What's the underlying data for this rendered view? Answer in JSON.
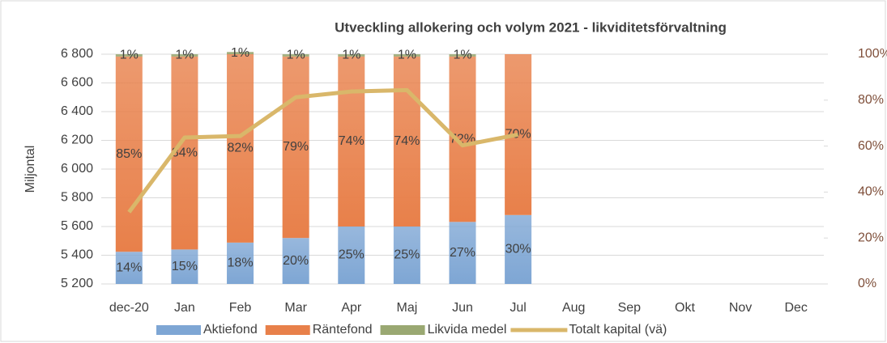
{
  "chart_data": {
    "type": "bar",
    "title": "Utveckling allokering och volym 2021 - likviditetsförvaltning",
    "y_label": "Miljontal",
    "categories": [
      "dec-20",
      "Jan",
      "Feb",
      "Mar",
      "Apr",
      "Maj",
      "Jun",
      "Jul",
      "Aug",
      "Sep",
      "Okt",
      "Nov",
      "Dec"
    ],
    "stacked": true,
    "series": [
      {
        "name": "Aktiefond",
        "color": "#7ea6d4",
        "axis": "y2",
        "type": "bar",
        "values": [
          14,
          15,
          18,
          20,
          25,
          25,
          27,
          30,
          null,
          null,
          null,
          null,
          null
        ],
        "value_labels": [
          "14%",
          "15%",
          "18%",
          "20%",
          "25%",
          "25%",
          "27%",
          "30%",
          null,
          null,
          null,
          null,
          null
        ]
      },
      {
        "name": "Räntefond",
        "color": "#e8804a",
        "axis": "y2",
        "type": "bar",
        "values": [
          85,
          84,
          82,
          79,
          74,
          74,
          72,
          70,
          null,
          null,
          null,
          null,
          null
        ],
        "value_labels": [
          "85%",
          "84%",
          "82%",
          "79%",
          "74%",
          "74%",
          "72%",
          "70%",
          null,
          null,
          null,
          null,
          null
        ]
      },
      {
        "name": "Likvida medel",
        "color": "#9aa872",
        "axis": "y2",
        "type": "bar",
        "values": [
          1,
          1,
          1,
          1,
          1,
          1,
          1,
          null,
          null,
          null,
          null,
          null,
          null
        ],
        "value_labels": [
          "1%",
          "1%",
          "1%",
          "1%",
          "1%",
          "1%",
          "1%",
          null,
          null,
          null,
          null,
          null,
          null
        ]
      },
      {
        "name": "Totalt kapital (vä)",
        "color": "#d9b76a",
        "axis": "y",
        "type": "line",
        "values": [
          5700,
          6220,
          6230,
          6500,
          6540,
          6550,
          6165,
          6240,
          null,
          null,
          null,
          null,
          null
        ]
      }
    ],
    "ylim": [
      5200,
      6800
    ],
    "yticks": [
      {
        "value": 5200,
        "label": "5 200"
      },
      {
        "value": 5400,
        "label": "5 400"
      },
      {
        "value": 5600,
        "label": "5 600"
      },
      {
        "value": 5800,
        "label": "5 800"
      },
      {
        "value": 6000,
        "label": "6 000"
      },
      {
        "value": 6200,
        "label": "6 200"
      },
      {
        "value": 6400,
        "label": "6 400"
      },
      {
        "value": 6600,
        "label": "6 600"
      },
      {
        "value": 6800,
        "label": "6 800"
      }
    ],
    "y2lim": [
      0,
      100
    ],
    "y2ticks": [
      {
        "value": 0,
        "label": "0%"
      },
      {
        "value": 20,
        "label": "20%"
      },
      {
        "value": 40,
        "label": "40%"
      },
      {
        "value": 60,
        "label": "60%"
      },
      {
        "value": 80,
        "label": "80%"
      },
      {
        "value": 100,
        "label": "100%"
      }
    ],
    "grid": true,
    "legend": "bottom"
  }
}
